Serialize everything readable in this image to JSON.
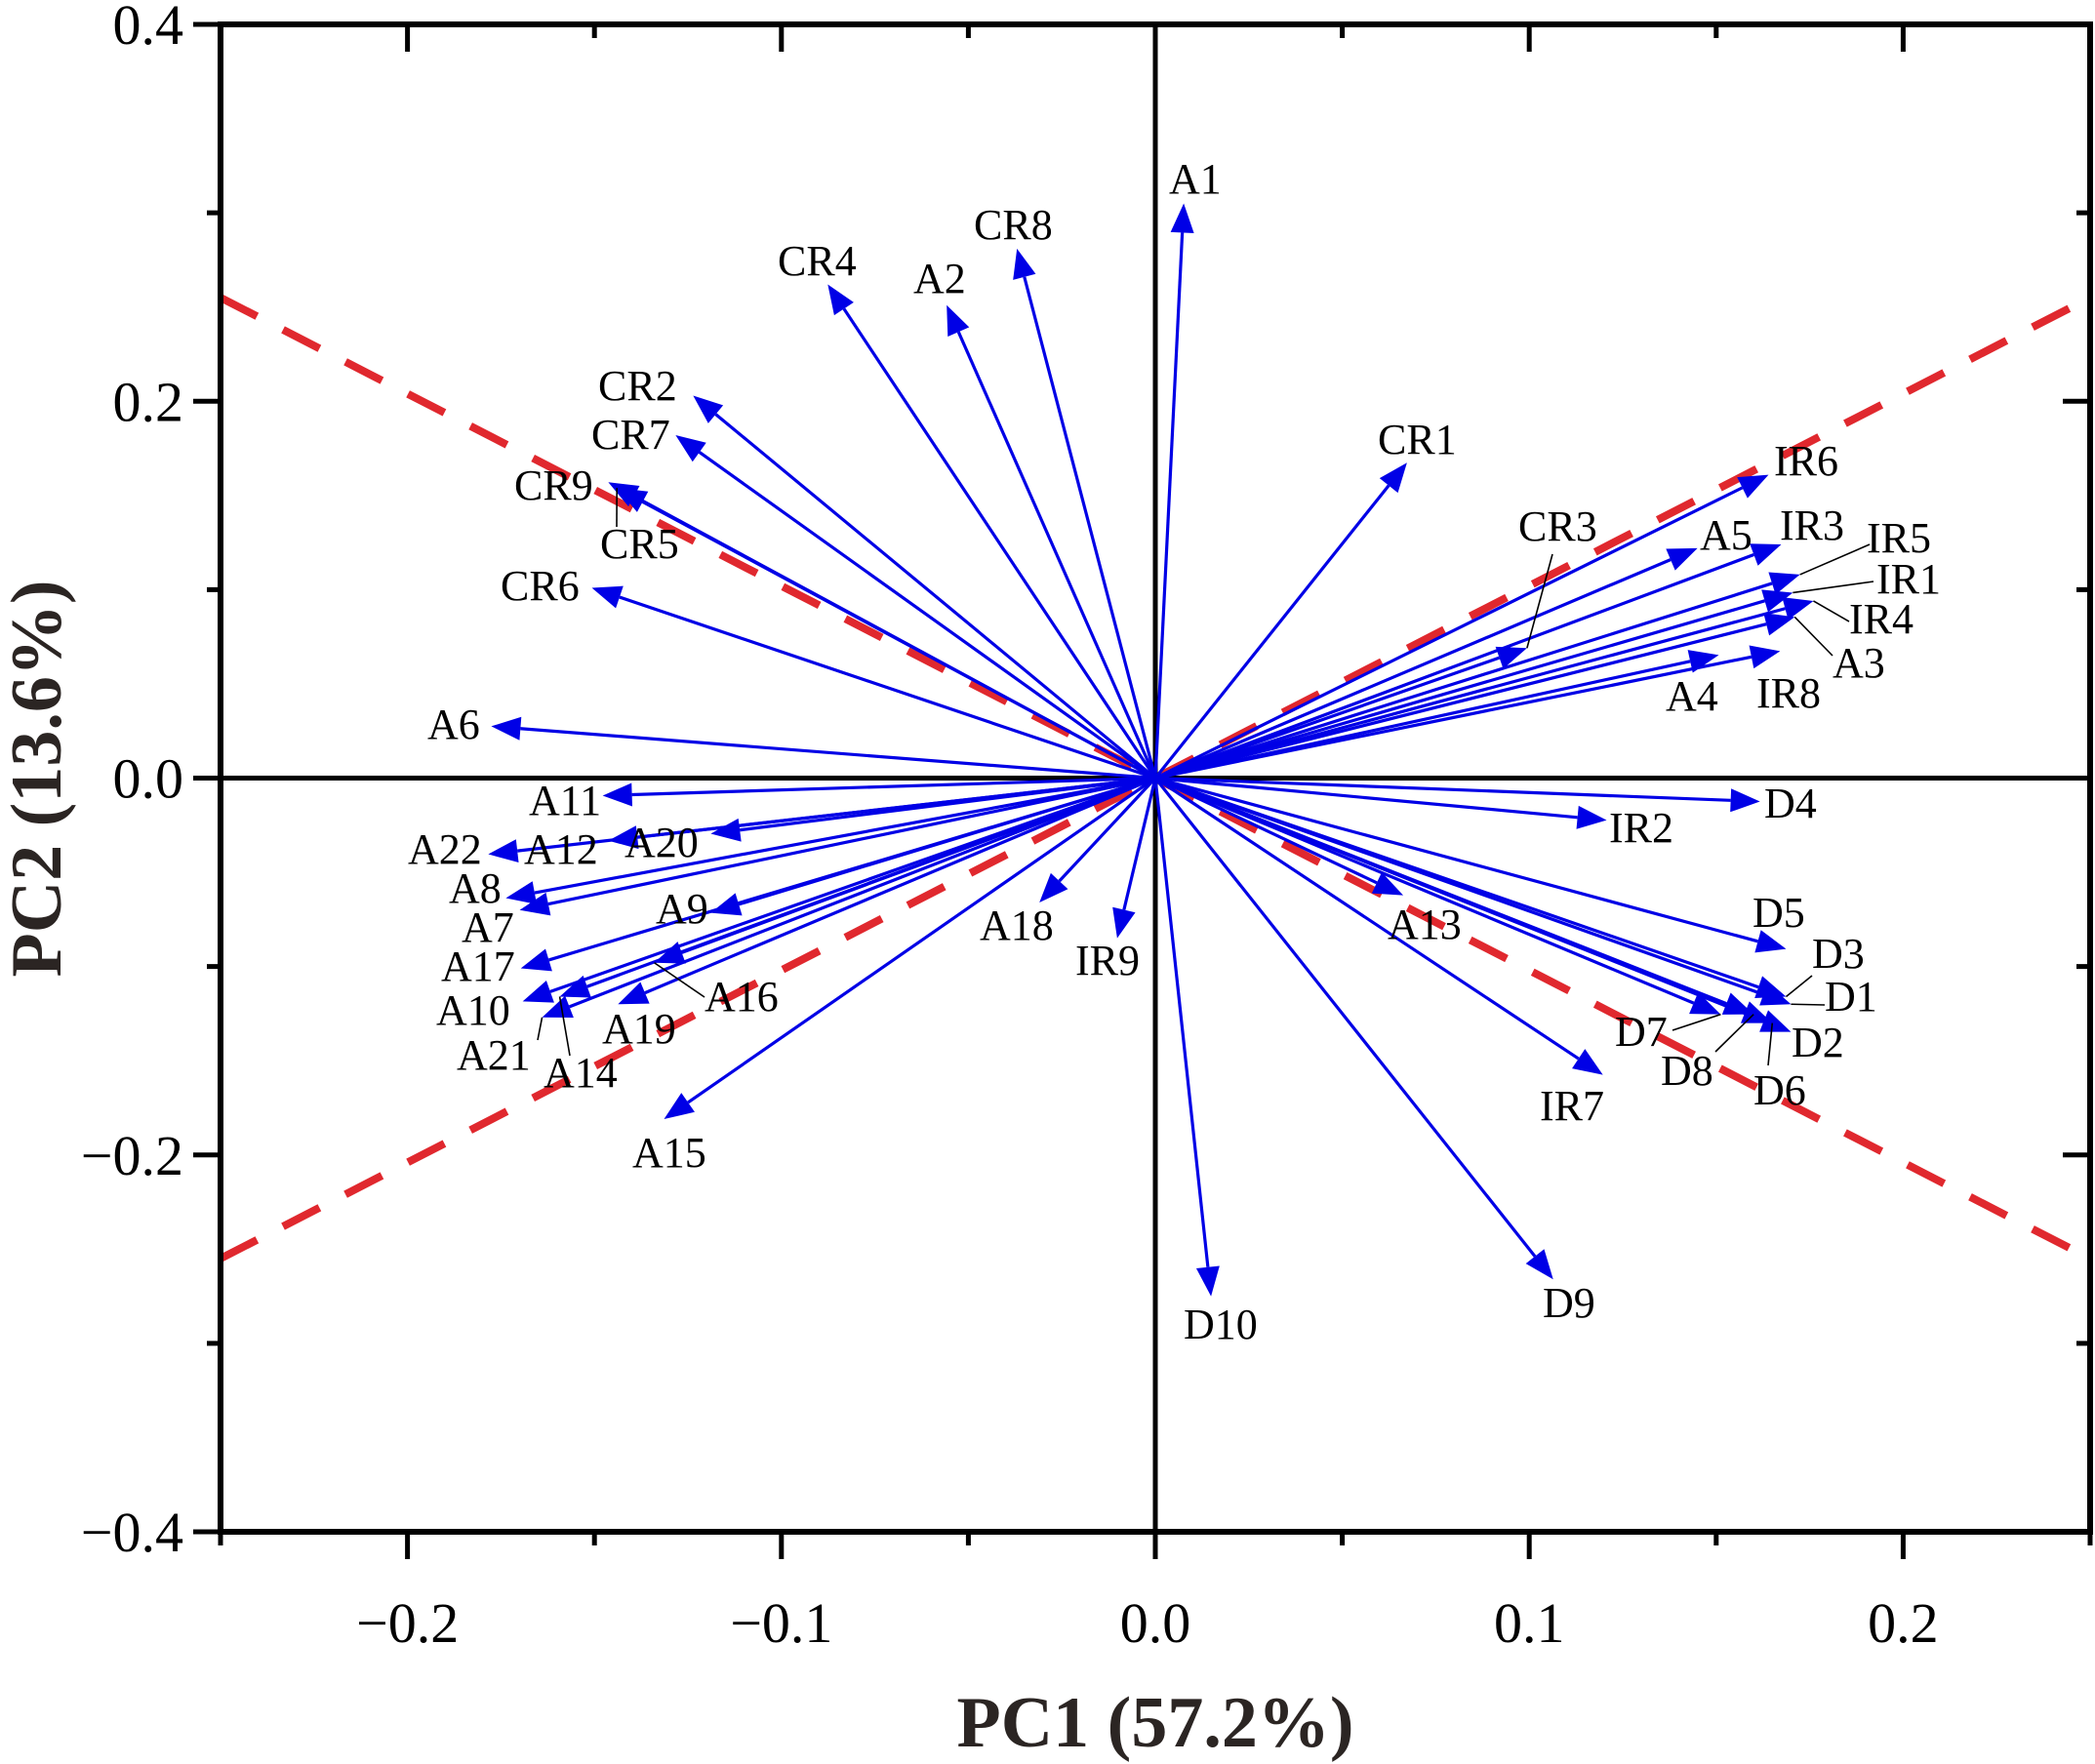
{
  "chart_data": {
    "type": "biplot",
    "title": "",
    "xlabel": "PC1 (57.2%)",
    "ylabel": "PC2 (13.6%)",
    "xlim": [
      -0.25,
      0.25
    ],
    "ylim": [
      -0.4,
      0.4
    ],
    "x_ticks": [
      -0.2,
      -0.1,
      0.0,
      0.1,
      0.2
    ],
    "x_tick_labels": [
      "−0.2",
      "−0.1",
      "0.0",
      "0.1",
      "0.2"
    ],
    "y_ticks": [
      -0.4,
      -0.2,
      0.0,
      0.2,
      0.4
    ],
    "y_tick_labels": [
      "−0.4",
      "−0.2",
      "0.0",
      "0.2",
      "0.4"
    ],
    "grid": false,
    "colors": {
      "arrow": "#0000e6",
      "reference_line": "#e0282e",
      "axis": "#000000",
      "axis_title": "#2b2523"
    },
    "reference_lines": [
      {
        "name": "upper-left to lower-right",
        "slope": -1.02
      },
      {
        "name": "lower-left to upper-right",
        "slope": 1.02
      }
    ],
    "loadings": [
      {
        "label": "A1",
        "x": 0.0076,
        "y": 0.305
      },
      {
        "label": "CR8",
        "x": -0.037,
        "y": 0.281
      },
      {
        "label": "CR4",
        "x": -0.0876,
        "y": 0.262
      },
      {
        "label": "A2",
        "x": -0.0558,
        "y": 0.251
      },
      {
        "label": "CR2",
        "x": -0.1236,
        "y": 0.203
      },
      {
        "label": "CR7",
        "x": -0.1283,
        "y": 0.182
      },
      {
        "label": "CR9",
        "x": -0.1463,
        "y": 0.157
      },
      {
        "label": "CR5",
        "x": -0.144,
        "y": 0.154
      },
      {
        "label": "CR6",
        "x": -0.1507,
        "y": 0.101
      },
      {
        "label": "A6",
        "x": -0.1776,
        "y": 0.0275
      },
      {
        "label": "A11",
        "x": -0.1478,
        "y": -0.0093
      },
      {
        "label": "A20",
        "x": -0.1189,
        "y": -0.0295
      },
      {
        "label": "A12",
        "x": -0.1463,
        "y": -0.0332
      },
      {
        "label": "A22",
        "x": -0.1784,
        "y": -0.0404
      },
      {
        "label": "A8",
        "x": -0.1737,
        "y": -0.0637
      },
      {
        "label": "A7",
        "x": -0.17,
        "y": -0.07
      },
      {
        "label": "A9",
        "x": -0.1189,
        "y": -0.0715
      },
      {
        "label": "A17",
        "x": -0.1697,
        "y": -0.101
      },
      {
        "label": "A16",
        "x": -0.134,
        "y": -0.098
      },
      {
        "label": "A10",
        "x": -0.1692,
        "y": -0.1185
      },
      {
        "label": "A14",
        "x": -0.1593,
        "y": -0.116
      },
      {
        "label": "A21",
        "x": -0.164,
        "y": -0.127
      },
      {
        "label": "A19",
        "x": -0.1437,
        "y": -0.12
      },
      {
        "label": "A15",
        "x": -0.1314,
        "y": -0.181
      },
      {
        "label": "A18",
        "x": -0.031,
        "y": -0.066
      },
      {
        "label": "IR9",
        "x": -0.0102,
        "y": -0.085
      },
      {
        "label": "D10",
        "x": 0.0149,
        "y": -0.275
      },
      {
        "label": "CR1",
        "x": 0.0673,
        "y": 0.1674
      },
      {
        "label": "IR6",
        "x": 0.164,
        "y": 0.161
      },
      {
        "label": "CR3",
        "x": 0.0994,
        "y": 0.069
      },
      {
        "label": "A5",
        "x": 0.145,
        "y": 0.122
      },
      {
        "label": "IR3",
        "x": 0.1674,
        "y": 0.124
      },
      {
        "label": "IR5",
        "x": 0.1724,
        "y": 0.108
      },
      {
        "label": "IR1",
        "x": 0.1705,
        "y": 0.0984
      },
      {
        "label": "IR4",
        "x": 0.176,
        "y": 0.094
      },
      {
        "label": "A3",
        "x": 0.171,
        "y": 0.0855
      },
      {
        "label": "A4",
        "x": 0.1507,
        "y": 0.0653
      },
      {
        "label": "IR8",
        "x": 0.1671,
        "y": 0.0674
      },
      {
        "label": "D4",
        "x": 0.1617,
        "y": -0.0124
      },
      {
        "label": "IR2",
        "x": 0.1207,
        "y": -0.0223
      },
      {
        "label": "A13",
        "x": 0.0663,
        "y": -0.0622
      },
      {
        "label": "D5",
        "x": 0.1687,
        "y": -0.0907
      },
      {
        "label": "D3",
        "x": 0.1687,
        "y": -0.116
      },
      {
        "label": "D1",
        "x": 0.17,
        "y": -0.12
      },
      {
        "label": "D7",
        "x": 0.1512,
        "y": -0.1254
      },
      {
        "label": "D8",
        "x": 0.16,
        "y": -0.1254
      },
      {
        "label": "D6",
        "x": 0.165,
        "y": -0.13
      },
      {
        "label": "D2",
        "x": 0.17,
        "y": -0.1347
      },
      {
        "label": "IR7",
        "x": 0.1197,
        "y": -0.1575
      },
      {
        "label": "D9",
        "x": 0.1064,
        "y": -0.266
      }
    ]
  }
}
